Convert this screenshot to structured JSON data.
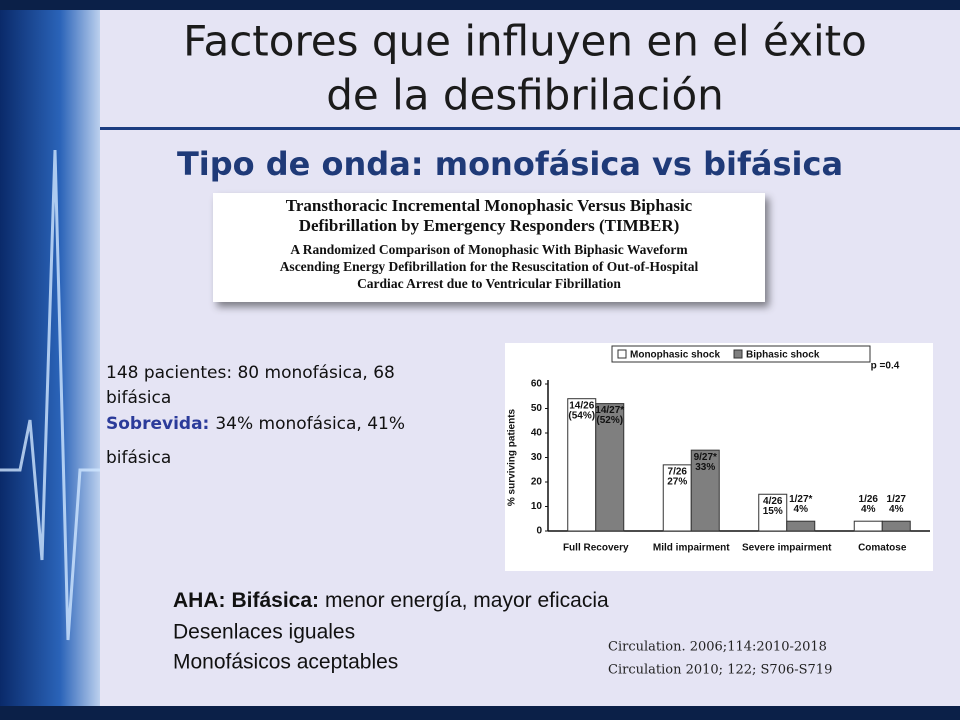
{
  "title": [
    "Factores que influyen en el éxito",
    "de la desfibrilación"
  ],
  "subtitle": "Tipo de onda: monofásica vs bifásica",
  "paper": {
    "title": [
      "Transthoracic Incremental Monophasic Versus Biphasic",
      "Defibrillation by Emergency Responders (TIMBER)"
    ],
    "subtitle": [
      "A Randomized Comparison of Monophasic With Biphasic Waveform",
      "Ascending Energy Defibrillation for the Resuscitation of Out-of-Hospital",
      "Cardiac Arrest due to Ventricular Fibrillation"
    ]
  },
  "summary": {
    "patients": [
      "148 pacientes: 80 monofásica, 68",
      "bifásica"
    ],
    "survival_label": "Sobrevida:",
    "survival": [
      "34% monofásica, 41%",
      "bifásica"
    ]
  },
  "aha": {
    "label": "AHA:",
    "key": "Bifásica:",
    "text": "menor energía, mayor eficacia",
    "lines": [
      "Desenlaces iguales",
      "Monofásicos aceptables"
    ]
  },
  "citations": [
    "Circulation. 2006;114:2010-2018",
    "Circulation 2010; 122; S706-S719"
  ],
  "chart_data": {
    "type": "bar",
    "categories": [
      "Full Recovery",
      "Mild impairment",
      "Severe impairment",
      "Comatose"
    ],
    "series": [
      {
        "name": "Monophasic shock",
        "color": "#ffffff",
        "values": [
          54,
          27,
          15,
          4
        ],
        "value_labels": [
          [
            "14/26",
            "(54%)"
          ],
          [
            "7/26",
            "27%"
          ],
          [
            "4/26",
            "15%"
          ],
          [
            "1/26",
            "4%"
          ]
        ]
      },
      {
        "name": "Biphasic shock",
        "color": "#7f7f7f",
        "values": [
          52,
          33,
          4,
          4
        ],
        "value_labels": [
          [
            "14/27*",
            "(52%)"
          ],
          [
            "9/27*",
            "33%"
          ],
          [
            "1/27*",
            "4%"
          ],
          [
            "1/27",
            "4%"
          ]
        ]
      }
    ],
    "ylabel": "% surviving patients",
    "ylim": [
      0,
      60
    ],
    "yticks": [
      0,
      10,
      20,
      30,
      40,
      50,
      60
    ],
    "annotation": "p =0.4",
    "legend": "top"
  }
}
